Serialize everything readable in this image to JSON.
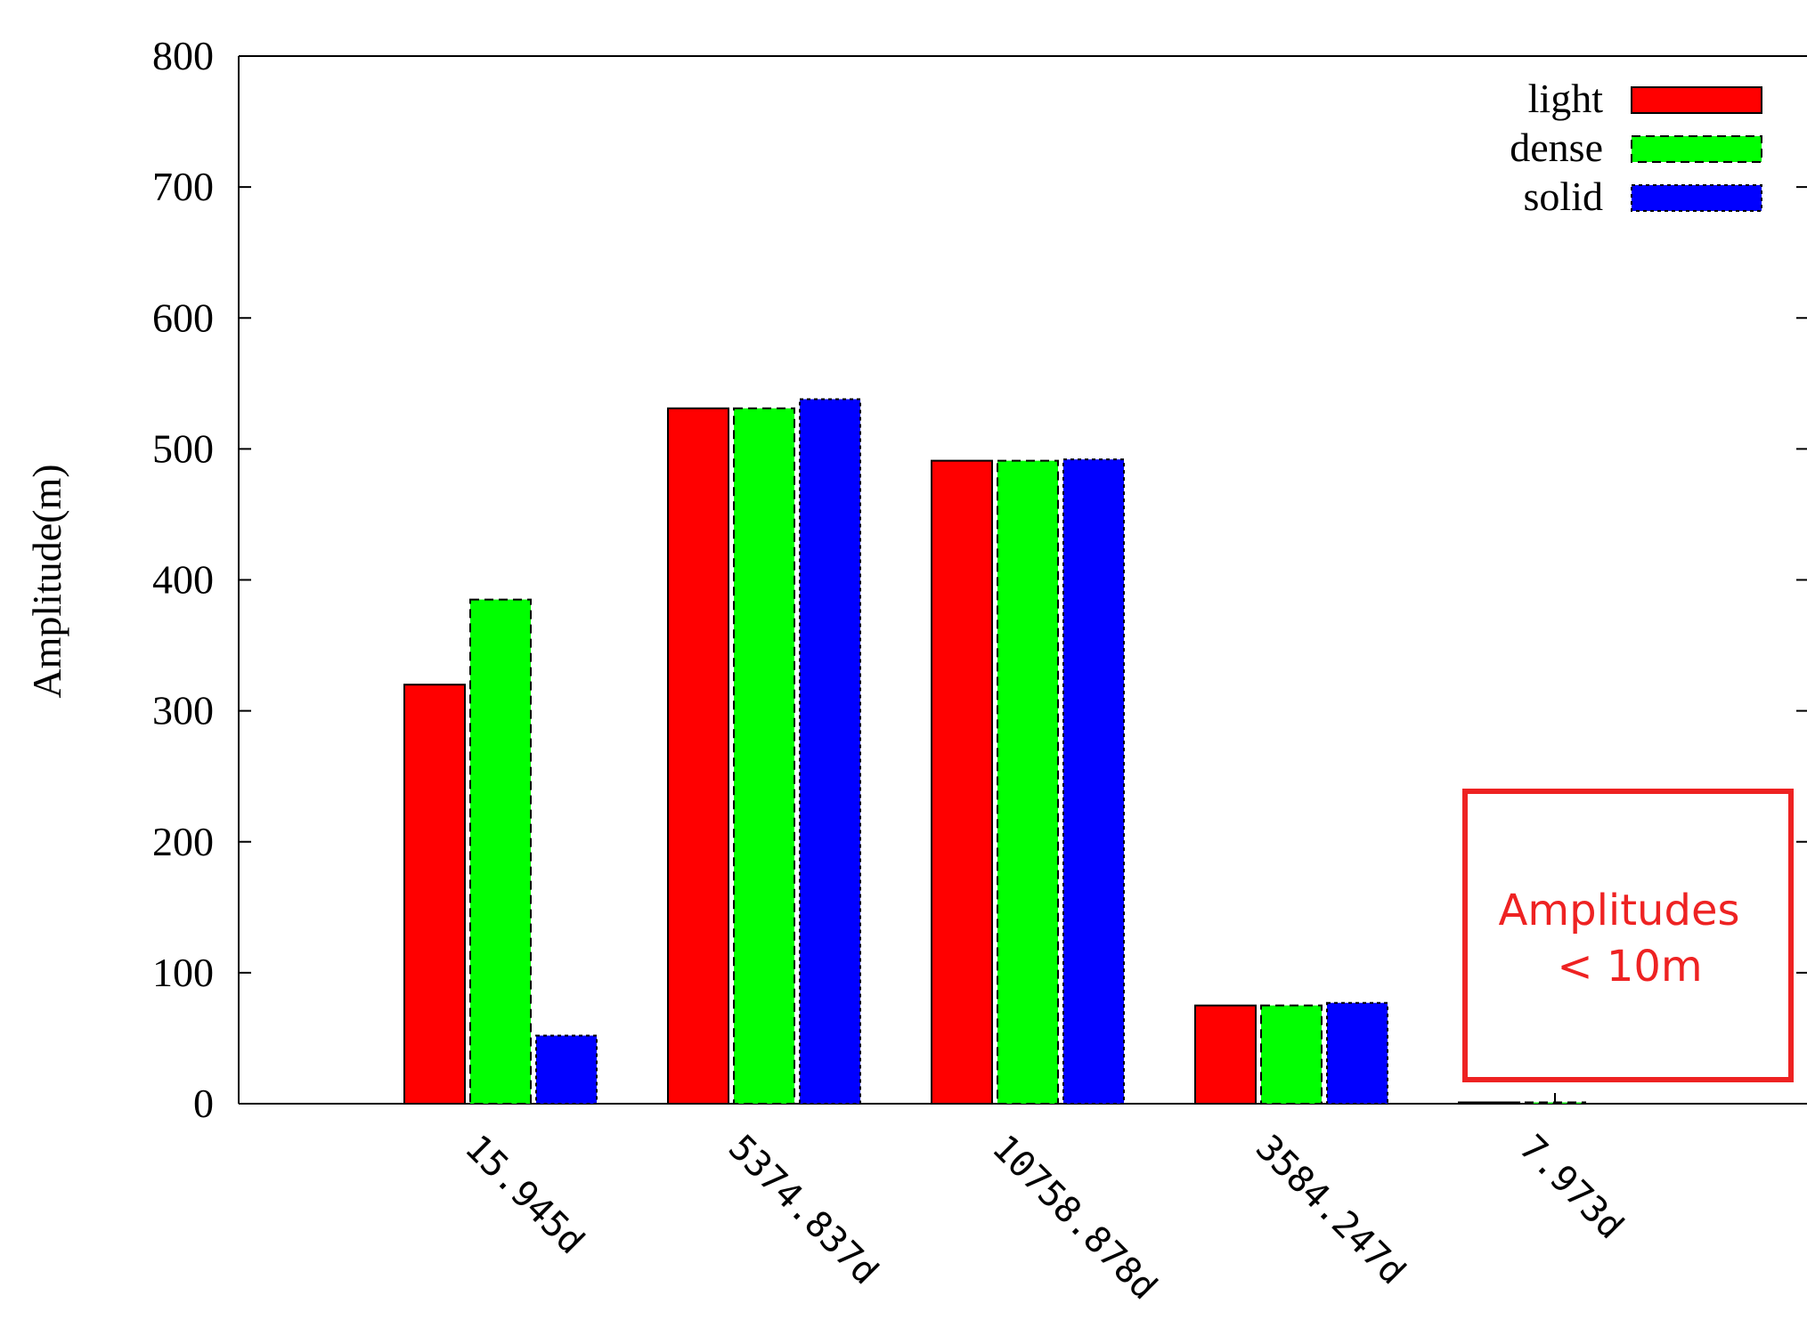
{
  "chart_data": {
    "type": "bar",
    "ylabel": "Amplitude(m)",
    "xlabel": "",
    "title": "",
    "ylim": [
      0,
      800
    ],
    "yticks": [
      "0",
      "100",
      "200",
      "300",
      "400",
      "500",
      "600",
      "700",
      "800"
    ],
    "categories": [
      "15.945d",
      "5374.837d",
      "10758.878d",
      "3584.247d",
      "7.973d"
    ],
    "series": [
      {
        "name": "light",
        "color": "#ff0000",
        "values": [
          320,
          531,
          491,
          75,
          1
        ]
      },
      {
        "name": "dense",
        "color": "#00ff00",
        "values": [
          385,
          531,
          491,
          75,
          1
        ]
      },
      {
        "name": "solid",
        "color": "#0000ff",
        "values": [
          52,
          538,
          492,
          77,
          0
        ]
      }
    ],
    "legend_position": "top-right",
    "grid": false,
    "annotation": {
      "line1": "Amplitudes",
      "line2": "< 10m",
      "color": "#ee2222"
    }
  }
}
